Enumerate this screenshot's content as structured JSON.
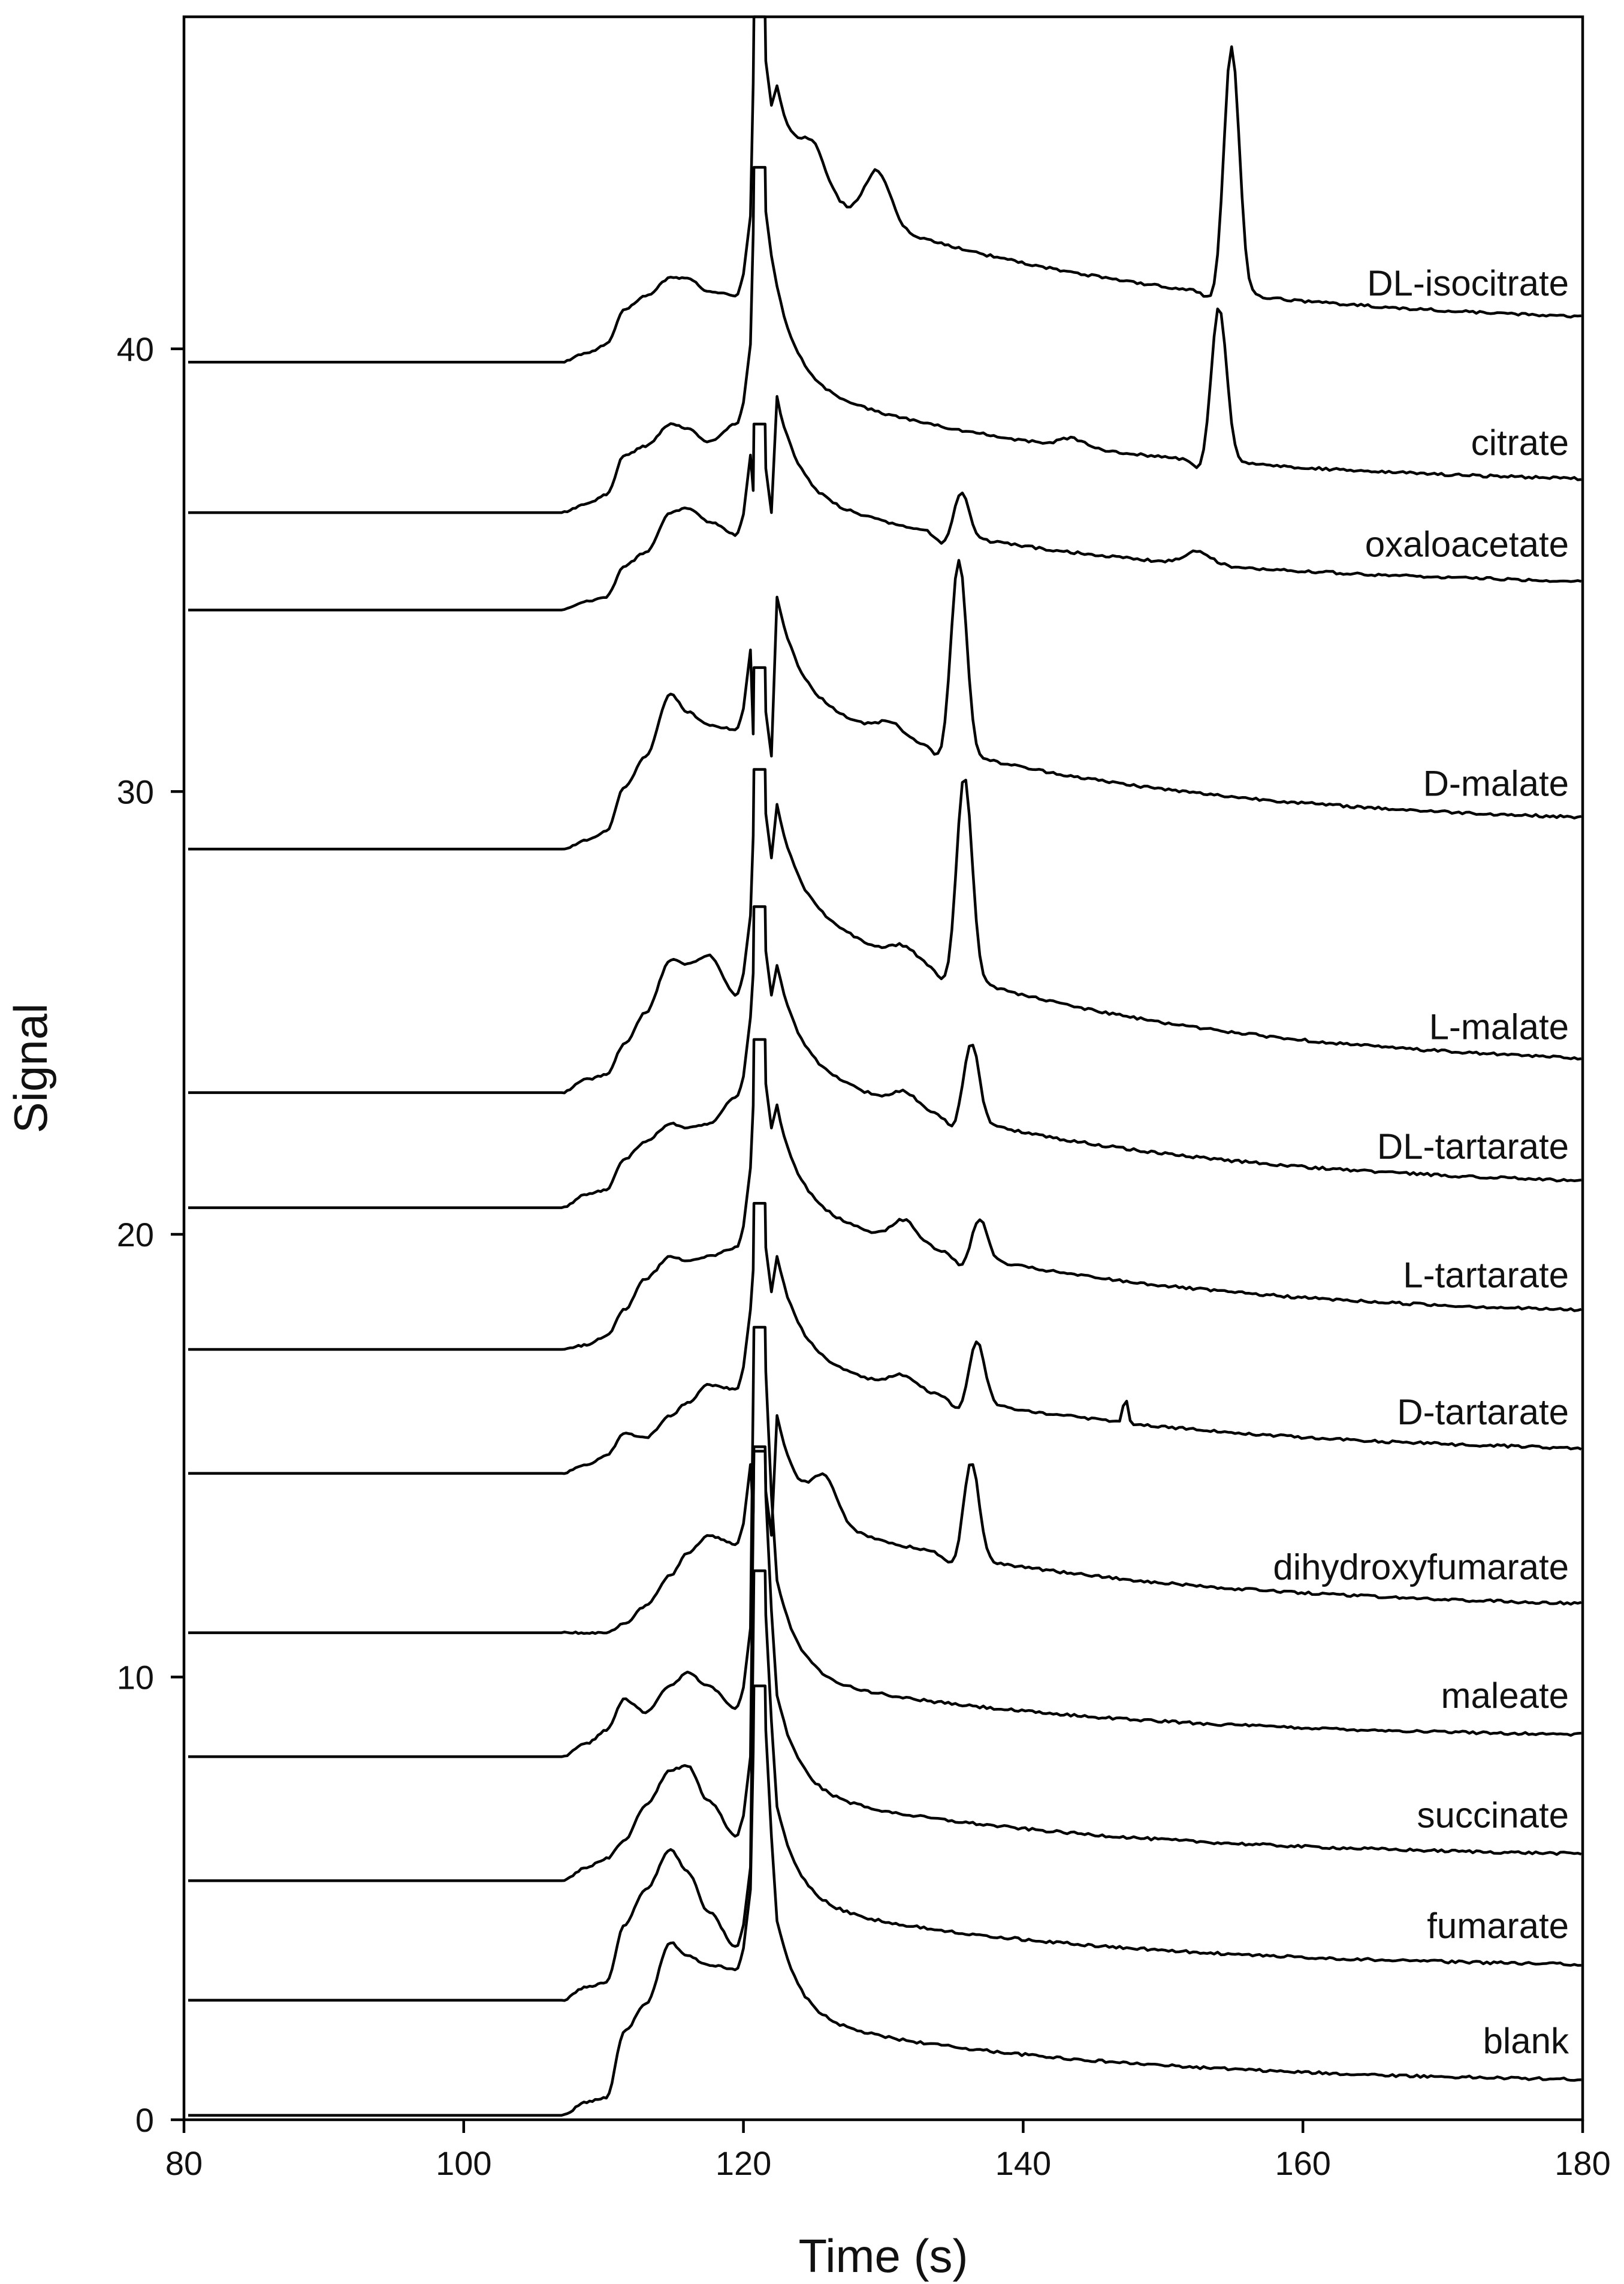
{
  "chart_data": {
    "type": "line",
    "title": "",
    "xlabel": "Time (s)",
    "ylabel": "Signal",
    "xlim": [
      80,
      180
    ],
    "ylim": [
      0,
      47.5
    ],
    "xticks": [
      80,
      100,
      120,
      140,
      160,
      180
    ],
    "yticks": [
      0,
      10,
      20,
      30,
      40
    ],
    "grid": false,
    "series": [
      {
        "name": "blank",
        "base": 0.1,
        "end": 0.8,
        "shoulder": [
          [
            108.8,
            0.4
          ],
          [
            110.2,
            0.5
          ],
          [
            111.5,
            2.0
          ],
          [
            113,
            2.6
          ],
          [
            114.8,
            4.0
          ],
          [
            116,
            3.7
          ],
          [
            117.5,
            3.5
          ],
          [
            119.5,
            3.4
          ]
        ],
        "peak": 9.8,
        "tail_amp": 1.5,
        "minor": [],
        "analyte": null
      },
      {
        "name": "fumarate",
        "base": 2.7,
        "end": 3.4,
        "shoulder": [
          [
            108.8,
            3.0
          ],
          [
            110.2,
            3.1
          ],
          [
            111.5,
            4.4
          ],
          [
            113,
            5.2
          ],
          [
            114.8,
            6.1
          ],
          [
            116,
            5.6
          ],
          [
            117.5,
            4.7
          ],
          [
            119.5,
            3.9
          ]
        ],
        "peak": 12.4,
        "tail_amp": 1.5,
        "minor": [],
        "analyte": null
      },
      {
        "name": "succinate",
        "base": 5.4,
        "end": 5.9,
        "shoulder": [
          [
            108.8,
            5.7
          ],
          [
            110.2,
            5.9
          ],
          [
            111.5,
            6.3
          ],
          [
            113,
            7.1
          ],
          [
            114.8,
            7.9
          ],
          [
            116,
            8.0
          ],
          [
            117.5,
            7.2
          ],
          [
            119.5,
            6.4
          ]
        ],
        "peak": 15.1,
        "tail_amp": 1.5,
        "minor": [],
        "analyte": null
      },
      {
        "name": "maleate",
        "base": 8.2,
        "end": 8.6,
        "shoulder": [
          [
            108.8,
            8.5
          ],
          [
            110.2,
            8.8
          ],
          [
            111.5,
            9.5
          ],
          [
            113,
            9.2
          ],
          [
            114.8,
            9.8
          ],
          [
            116,
            10.1
          ],
          [
            117.5,
            9.8
          ],
          [
            119.5,
            9.3
          ]
        ],
        "peak": 17.9,
        "tail_amp": 1.4,
        "minor": [],
        "analyte": null
      },
      {
        "name": "dihydroxyfumarate",
        "base": 11.0,
        "end": 11.5,
        "shoulder": [
          [
            108.8,
            11.0
          ],
          [
            110.2,
            11.0
          ],
          [
            111.5,
            11.2
          ],
          [
            113,
            11.6
          ],
          [
            114.8,
            12.3
          ],
          [
            116,
            12.8
          ],
          [
            117.5,
            13.2
          ],
          [
            119.5,
            13.0
          ]
        ],
        "peak": 15.2,
        "tail_amp": 2.2,
        "minor": [
          [
            125.8,
            0.9
          ]
        ],
        "analyte": [
          136.3,
          2.2
        ]
      },
      {
        "name": "D-tartarate",
        "base": 14.6,
        "end": 15.0,
        "shoulder": [
          [
            108.8,
            14.8
          ],
          [
            110.2,
            15.0
          ],
          [
            111.5,
            15.5
          ],
          [
            113,
            15.4
          ],
          [
            114.8,
            15.9
          ],
          [
            116,
            16.2
          ],
          [
            117.5,
            16.6
          ],
          [
            119.5,
            16.5
          ]
        ],
        "peak": 20.7,
        "tail_amp": 2.3,
        "minor": [
          [
            131.5,
            0.3
          ]
        ],
        "analyte": [
          136.7,
          1.4
        ],
        "spike": [
          147.3,
          0.6
        ]
      },
      {
        "name": "L-tartarate",
        "base": 17.4,
        "end": 18.1,
        "shoulder": [
          [
            108.8,
            17.5
          ],
          [
            110.2,
            17.7
          ],
          [
            111.5,
            18.3
          ],
          [
            113,
            19.0
          ],
          [
            114.8,
            19.5
          ],
          [
            116,
            19.4
          ],
          [
            117.5,
            19.5
          ],
          [
            119.5,
            19.7
          ]
        ],
        "peak": 24.4,
        "tail_amp": 2.6,
        "minor": [
          [
            131.5,
            0.5
          ]
        ],
        "analyte": [
          136.9,
          0.9
        ]
      },
      {
        "name": "DL-tartarate",
        "base": 20.6,
        "end": 21.0,
        "shoulder": [
          [
            108.8,
            20.9
          ],
          [
            110.2,
            21.0
          ],
          [
            111.5,
            21.7
          ],
          [
            113,
            22.1
          ],
          [
            114.8,
            22.5
          ],
          [
            116,
            22.4
          ],
          [
            117.5,
            22.5
          ],
          [
            119.5,
            23.1
          ]
        ],
        "peak": 27.4,
        "tail_amp": 2.9,
        "minor": [
          [
            131.5,
            0.3
          ]
        ],
        "analyte": [
          136.3,
          1.8
        ]
      },
      {
        "name": "L-malate",
        "base": 23.2,
        "end": 23.7,
        "shoulder": [
          [
            108.8,
            23.5
          ],
          [
            110.2,
            23.6
          ],
          [
            111.5,
            24.3
          ],
          [
            113,
            25.0
          ],
          [
            114.8,
            26.2
          ],
          [
            116,
            26.1
          ],
          [
            117.5,
            26.3
          ],
          [
            119.5,
            25.4
          ]
        ],
        "peak": 30.5,
        "tail_amp": 3.8,
        "minor": [
          [
            131.5,
            0.3
          ]
        ],
        "analyte": [
          135.8,
          4.6
        ]
      },
      {
        "name": "D-malate",
        "base": 28.7,
        "end": 29.2,
        "shoulder": [
          [
            108.8,
            28.9
          ],
          [
            110.2,
            29.1
          ],
          [
            111.5,
            30.1
          ],
          [
            113,
            30.8
          ],
          [
            114.8,
            32.2
          ],
          [
            116,
            31.8
          ],
          [
            117.5,
            31.5
          ],
          [
            119.5,
            31.4
          ]
        ],
        "peak": 32.8,
        "tail_amp": 3.0,
        "minor": [
          [
            130.5,
            0.3
          ]
        ],
        "analyte": [
          135.4,
          4.4
        ]
      },
      {
        "name": "oxaloacetate",
        "base": 34.1,
        "end": 34.6,
        "shoulder": [
          [
            108.8,
            34.3
          ],
          [
            110.2,
            34.4
          ],
          [
            111.5,
            35.1
          ],
          [
            113,
            35.4
          ],
          [
            114.8,
            36.3
          ],
          [
            116,
            36.4
          ],
          [
            117.5,
            36.1
          ],
          [
            119.5,
            35.8
          ]
        ],
        "peak": 38.3,
        "tail_amp": 2.1,
        "minor": [
          [
            152.5,
            0.3
          ]
        ],
        "analyte": [
          135.6,
          1.0
        ]
      },
      {
        "name": "citrate",
        "base": 36.3,
        "end": 36.9,
        "shoulder": [
          [
            108.8,
            36.5
          ],
          [
            110.2,
            36.7
          ],
          [
            111.5,
            37.6
          ],
          [
            113,
            37.8
          ],
          [
            114.8,
            38.3
          ],
          [
            116,
            38.2
          ],
          [
            117.5,
            37.9
          ],
          [
            119.5,
            38.3
          ]
        ],
        "peak": 44.1,
        "tail_amp": 2.3,
        "minor": [
          [
            143.5,
            0.2
          ]
        ],
        "analyte": [
          154.0,
          3.5
        ]
      },
      {
        "name": "DL-isocitrate",
        "base": 39.7,
        "end": 40.5,
        "shoulder": [
          [
            108.8,
            39.9
          ],
          [
            110.2,
            40.1
          ],
          [
            111.5,
            40.9
          ],
          [
            113,
            41.2
          ],
          [
            114.8,
            41.6
          ],
          [
            116,
            41.6
          ],
          [
            117.5,
            41.3
          ],
          [
            119.5,
            41.2
          ]
        ],
        "peak": 47.5,
        "tail_amp": 3.2,
        "minor": [
          [
            125.0,
            0.9
          ],
          [
            129.6,
            1.2
          ]
        ],
        "analyte": [
          154.9,
          5.6
        ]
      }
    ]
  }
}
